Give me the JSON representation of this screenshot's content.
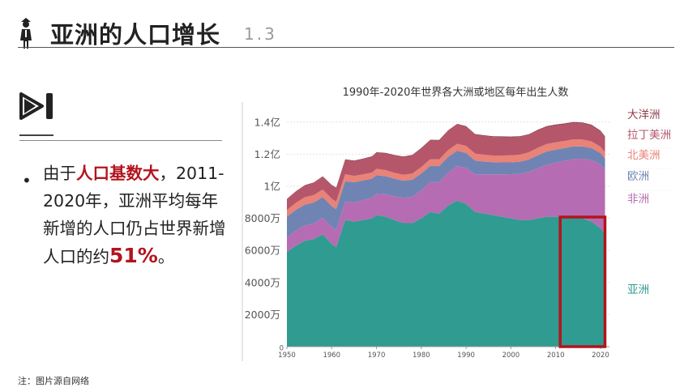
{
  "header": {
    "title": "亚洲的人口增长",
    "section_number": "1.3",
    "icon": "person-icon"
  },
  "bullet": {
    "part1": "由于",
    "highlight": "人口基数大",
    "part2": "，2011-2020年，亚洲平均每年新增的人口仍占世界新增人口的约",
    "percent": "51%",
    "part3": "。"
  },
  "note": "注：图片源自网络",
  "colors": {
    "accent_red": "#b3141d",
    "asia": "#2f9b91",
    "africa": "#b56cb3",
    "europe": "#6f84b3",
    "north_america": "#e98277",
    "latin_america": "#b6566a",
    "oceania": "#8f3c48"
  },
  "chart_data": {
    "type": "area",
    "stacked": true,
    "title": "1990年-2020年世界各大洲或地区每年出生人数",
    "xlim": [
      1950,
      2022
    ],
    "ylim": [
      0,
      150000000
    ],
    "x_ticks": [
      1950,
      1960,
      1970,
      1980,
      1990,
      2000,
      2010,
      2020
    ],
    "y_ticks": [
      {
        "value": 0,
        "label": "0"
      },
      {
        "value": 20000000,
        "label": "2000万"
      },
      {
        "value": 40000000,
        "label": "4000万"
      },
      {
        "value": 60000000,
        "label": "6000万"
      },
      {
        "value": 80000000,
        "label": "8000万"
      },
      {
        "value": 100000000,
        "label": "1亿"
      },
      {
        "value": 120000000,
        "label": "1.2亿"
      },
      {
        "value": 140000000,
        "label": "1.4亿"
      }
    ],
    "x": [
      1950,
      1952,
      1954,
      1956,
      1958,
      1960,
      1961,
      1963,
      1965,
      1967,
      1969,
      1970,
      1972,
      1974,
      1976,
      1978,
      1980,
      1982,
      1984,
      1986,
      1988,
      1990,
      1992,
      1994,
      1996,
      1998,
      2000,
      2002,
      2004,
      2006,
      2008,
      2010,
      2012,
      2014,
      2016,
      2018,
      2020,
      2021
    ],
    "series": [
      {
        "name": "亚洲",
        "values": [
          59,
          63,
          66,
          67,
          70,
          64,
          62,
          79,
          78,
          79,
          80,
          82,
          81,
          79,
          77,
          77,
          80,
          84,
          83,
          88,
          91,
          89,
          84,
          83,
          82,
          81,
          80,
          79,
          79,
          80,
          81,
          81,
          81,
          81,
          80,
          78,
          74,
          70
        ]
      },
      {
        "name": "非洲",
        "values": [
          9.0,
          9.3,
          9.6,
          9.9,
          10.3,
          10.7,
          10.9,
          11.4,
          11.9,
          12.4,
          13.0,
          13.3,
          14.0,
          14.8,
          15.7,
          16.6,
          17.6,
          18.6,
          19.6,
          20.6,
          21.6,
          22.5,
          23.4,
          24.4,
          25.4,
          26.5,
          27.6,
          28.8,
          30.0,
          31.3,
          32.5,
          33.8,
          34.9,
          36.0,
          37.2,
          38.4,
          39.7,
          40.4
        ]
      },
      {
        "name": "欧洲",
        "values": [
          13.0,
          13.0,
          13.0,
          13.0,
          13.0,
          12.9,
          12.9,
          12.8,
          12.6,
          12.2,
          11.8,
          11.6,
          11.3,
          11.0,
          10.8,
          10.6,
          10.4,
          10.2,
          10.0,
          9.8,
          9.6,
          9.2,
          8.6,
          8.0,
          7.6,
          7.4,
          7.3,
          7.5,
          7.7,
          8.0,
          8.2,
          8.1,
          8.0,
          7.9,
          7.7,
          7.4,
          7.0,
          6.8
        ]
      },
      {
        "name": "北美洲",
        "values": [
          4.2,
          4.4,
          4.6,
          4.7,
          4.7,
          4.6,
          4.6,
          4.4,
          4.0,
          3.8,
          3.8,
          4.0,
          3.8,
          3.6,
          3.7,
          3.8,
          4.0,
          4.1,
          4.1,
          4.2,
          4.3,
          4.5,
          4.4,
          4.3,
          4.2,
          4.3,
          4.4,
          4.4,
          4.5,
          4.7,
          4.7,
          4.6,
          4.4,
          4.4,
          4.3,
          4.2,
          4.0,
          4.0
        ]
      },
      {
        "name": "拉丁美洲",
        "values": [
          6.5,
          6.8,
          7.1,
          7.4,
          7.7,
          8.1,
          8.3,
          8.7,
          9.0,
          9.3,
          9.6,
          9.8,
          10.2,
          10.6,
          10.9,
          11.1,
          11.4,
          11.6,
          11.7,
          11.8,
          11.9,
          11.8,
          11.7,
          11.6,
          11.5,
          11.4,
          11.2,
          11.0,
          10.8,
          10.6,
          10.5,
          10.4,
          10.3,
          10.2,
          10.0,
          9.8,
          9.4,
          9.3
        ]
      },
      {
        "name": "大洋洲",
        "values": [
          0.4,
          0.4,
          0.4,
          0.4,
          0.5,
          0.5,
          0.5,
          0.5,
          0.5,
          0.5,
          0.5,
          0.5,
          0.5,
          0.5,
          0.5,
          0.5,
          0.5,
          0.5,
          0.5,
          0.5,
          0.5,
          0.5,
          0.5,
          0.5,
          0.5,
          0.5,
          0.5,
          0.5,
          0.5,
          0.6,
          0.6,
          0.6,
          0.6,
          0.6,
          0.6,
          0.6,
          0.6,
          0.6
        ]
      }
    ],
    "unit_values": "百万",
    "legend": [
      "大洋洲",
      "拉丁美洲",
      "北美洲",
      "欧洲",
      "非洲",
      "亚洲"
    ],
    "legend_placement": "right",
    "highlight_range": [
      2011,
      2021
    ],
    "grid": true
  }
}
